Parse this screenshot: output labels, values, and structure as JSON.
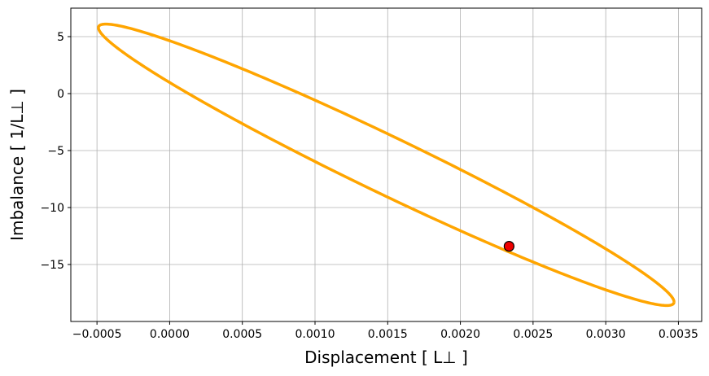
{
  "chart_data": {
    "type": "line",
    "title": "",
    "xlabel": "Displacement [ L⊥ ]",
    "ylabel": "Imbalance [ 1/L⊥ ]",
    "xlim": [
      -0.00068,
      0.00366
    ],
    "ylim": [
      -20.0,
      7.5
    ],
    "xticks": [
      -0.0005,
      0.0,
      0.0005,
      0.001,
      0.0015,
      0.002,
      0.0025,
      0.003,
      0.0035
    ],
    "xtick_labels": [
      "−0.0005",
      "0.0000",
      "0.0005",
      "0.0010",
      "0.0015",
      "0.0020",
      "0.0025",
      "0.0030",
      "0.0035"
    ],
    "yticks": [
      5,
      0,
      -5,
      -10,
      -15
    ],
    "ytick_labels": [
      "5",
      "0",
      "−5",
      "−10",
      "−15"
    ],
    "grid": true,
    "series": [
      {
        "kind": "ellipse-loop",
        "color": "#FFA500",
        "center_x": 0.00149,
        "center_y": -6.25,
        "amplitude_x": 0.00198,
        "amplitude_y": 12.35,
        "phase_lag_rad": 0.227
      }
    ],
    "marker": {
      "x": 0.002335,
      "y": -13.4,
      "fill": "#EE0000",
      "edge": "#000000"
    }
  }
}
